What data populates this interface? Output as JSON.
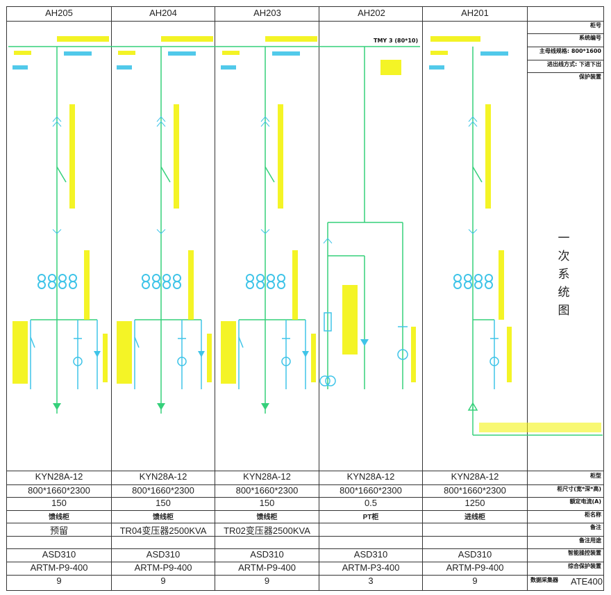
{
  "headers": [
    "AH205",
    "AH204",
    "AH203",
    "AH202",
    "AH201"
  ],
  "bus_label": "TMY 3 (80*10)",
  "right_panel": {
    "top_rows": [
      "柜号",
      "系统编号",
      "主母线规格: 800*1600",
      "进出线方式: 下进下出",
      "保护装置"
    ],
    "title_chars": [
      "一",
      "次",
      "系",
      "统",
      "图"
    ],
    "bottom_rows": [
      "柜型",
      "柜尺寸(宽*深*高)",
      "额定电流(A)",
      "柜名称",
      "备注",
      "备注用途",
      "智能操控装置",
      "综合保护装置",
      "数据采集器"
    ],
    "last_row_value": "ATE400"
  },
  "table": {
    "cabinet_model": [
      "KYN28A-12",
      "KYN28A-12",
      "KYN28A-12",
      "KYN28A-12",
      "KYN28A-12"
    ],
    "dimensions": [
      "800*1660*2300",
      "800*1660*2300",
      "800*1660*2300",
      "800*1660*2300",
      "800*1660*2300"
    ],
    "rated_current": [
      "150",
      "150",
      "150",
      "0.5",
      "1250"
    ],
    "cabinet_name": [
      "馈线柜",
      "馈线柜",
      "馈线柜",
      "PT柜",
      "进线柜"
    ],
    "remark": [
      "预留",
      "TR04变压器2500KVA",
      "TR02变压器2500KVA",
      "",
      ""
    ],
    "usage": [
      "",
      "",
      "",
      "",
      ""
    ],
    "control_device": [
      "ASD310",
      "ASD310",
      "ASD310",
      "ASD310",
      "ASD310"
    ],
    "protection_device": [
      "ARTM-P9-400",
      "ARTM-P9-400",
      "ARTM-P9-400",
      "ARTM-P3-400",
      "ARTM-P9-400"
    ],
    "collector": [
      "9",
      "9",
      "9",
      "3",
      "9"
    ]
  },
  "colors": {
    "line": "#35d07a",
    "cyan": "#3fc4e8",
    "label": "#f2f200",
    "grid": "#333333"
  }
}
